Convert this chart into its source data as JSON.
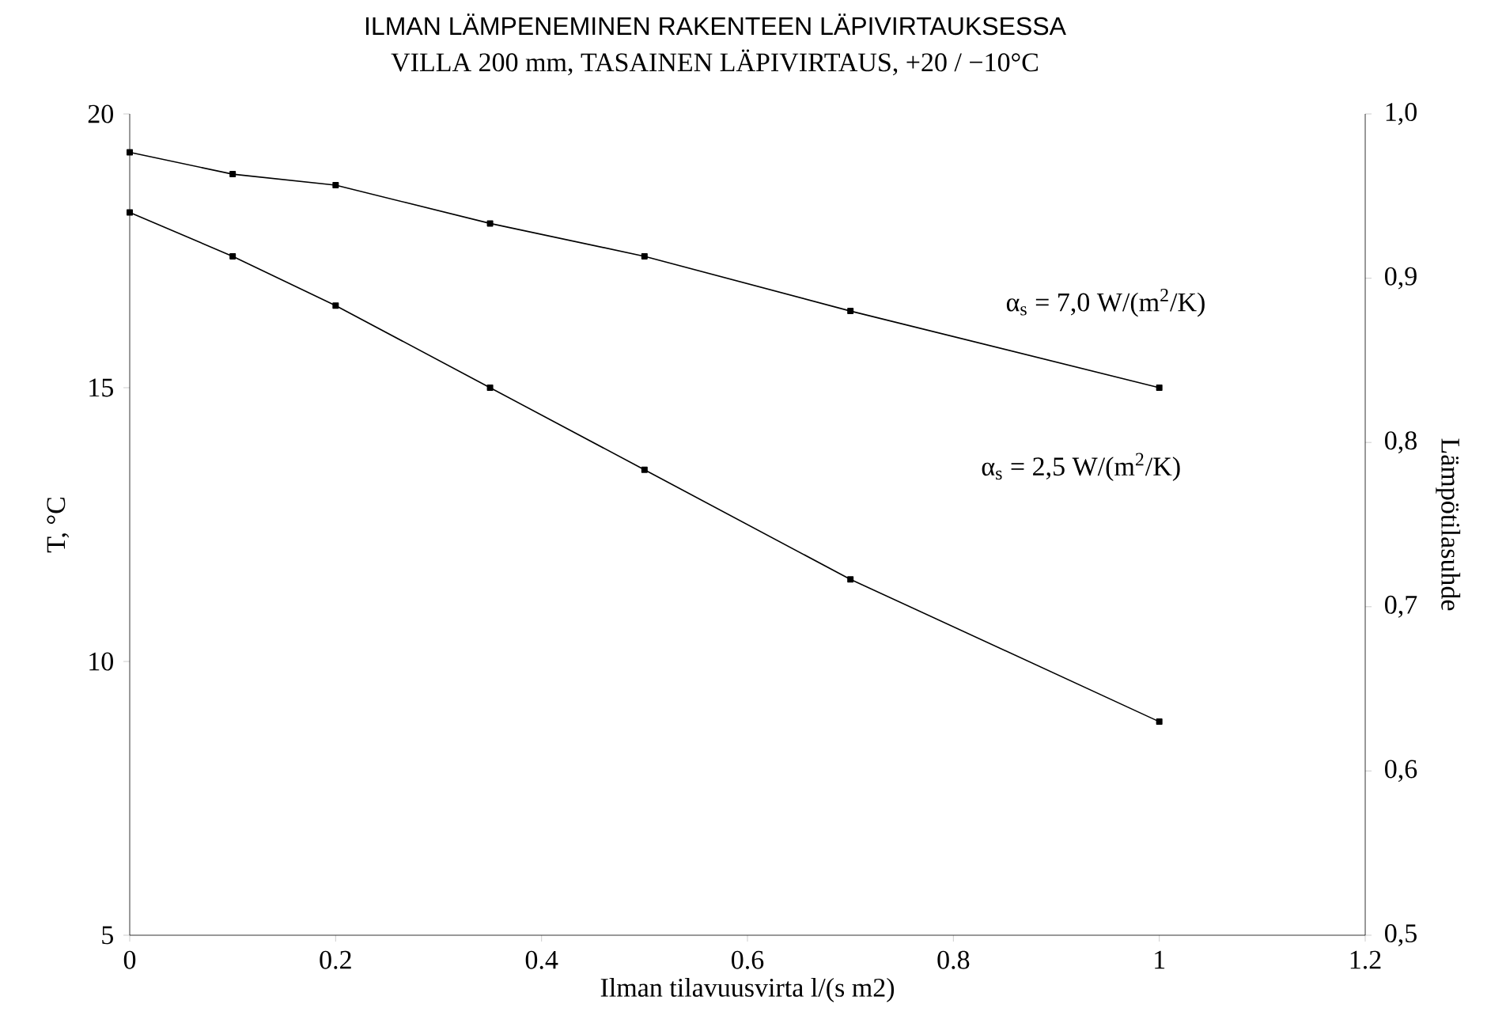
{
  "chart_data": {
    "type": "line",
    "title": "ILMAN LÄMPENEMINEN RAKENTEEN LÄPIVIRTAUKSESSA",
    "subtitle": "VILLA 200 mm, TASAINEN LÄPIVIRTAUS,  +20 / −10°C",
    "xlabel": "Ilman tilavuusvirta  l/(s m2)",
    "ylabel": "T, °C",
    "y2label": "Lämpötilasuhde",
    "x": [
      0,
      0.1,
      0.2,
      0.35,
      0.5,
      0.7,
      1
    ],
    "series": [
      {
        "color": "#000000",
        "values": [
          19.3,
          18.9,
          18.7,
          18.0,
          17.4,
          16.4,
          15.0
        ]
      },
      {
        "color": "#000000",
        "values": [
          18.2,
          17.4,
          16.5,
          15.0,
          13.5,
          11.5,
          8.9
        ]
      }
    ],
    "xlim": [
      0,
      1.2
    ],
    "xticks": [
      0,
      0.2,
      0.4,
      0.6,
      0.8,
      1,
      1.2
    ],
    "ylim": [
      5,
      20
    ],
    "yticks": [
      5,
      10,
      15,
      20
    ],
    "y2lim": [
      0.5,
      1.0
    ],
    "y2ticks": [
      {
        "value": 0.5,
        "label": "0,5"
      },
      {
        "value": 0.6,
        "label": "0,6"
      },
      {
        "value": 0.7,
        "label": "0,7"
      },
      {
        "value": 0.8,
        "label": "0,8"
      },
      {
        "value": 0.9,
        "label": "0,9"
      },
      {
        "value": 1.0,
        "label": "1,0"
      }
    ],
    "annotations": [
      "α$_{s}$ = 7,0 W/(m$^{2}$/K)",
      "α$_{s}$ = 2,5 W/(m$^{2}$/K)"
    ],
    "marker": "square"
  }
}
